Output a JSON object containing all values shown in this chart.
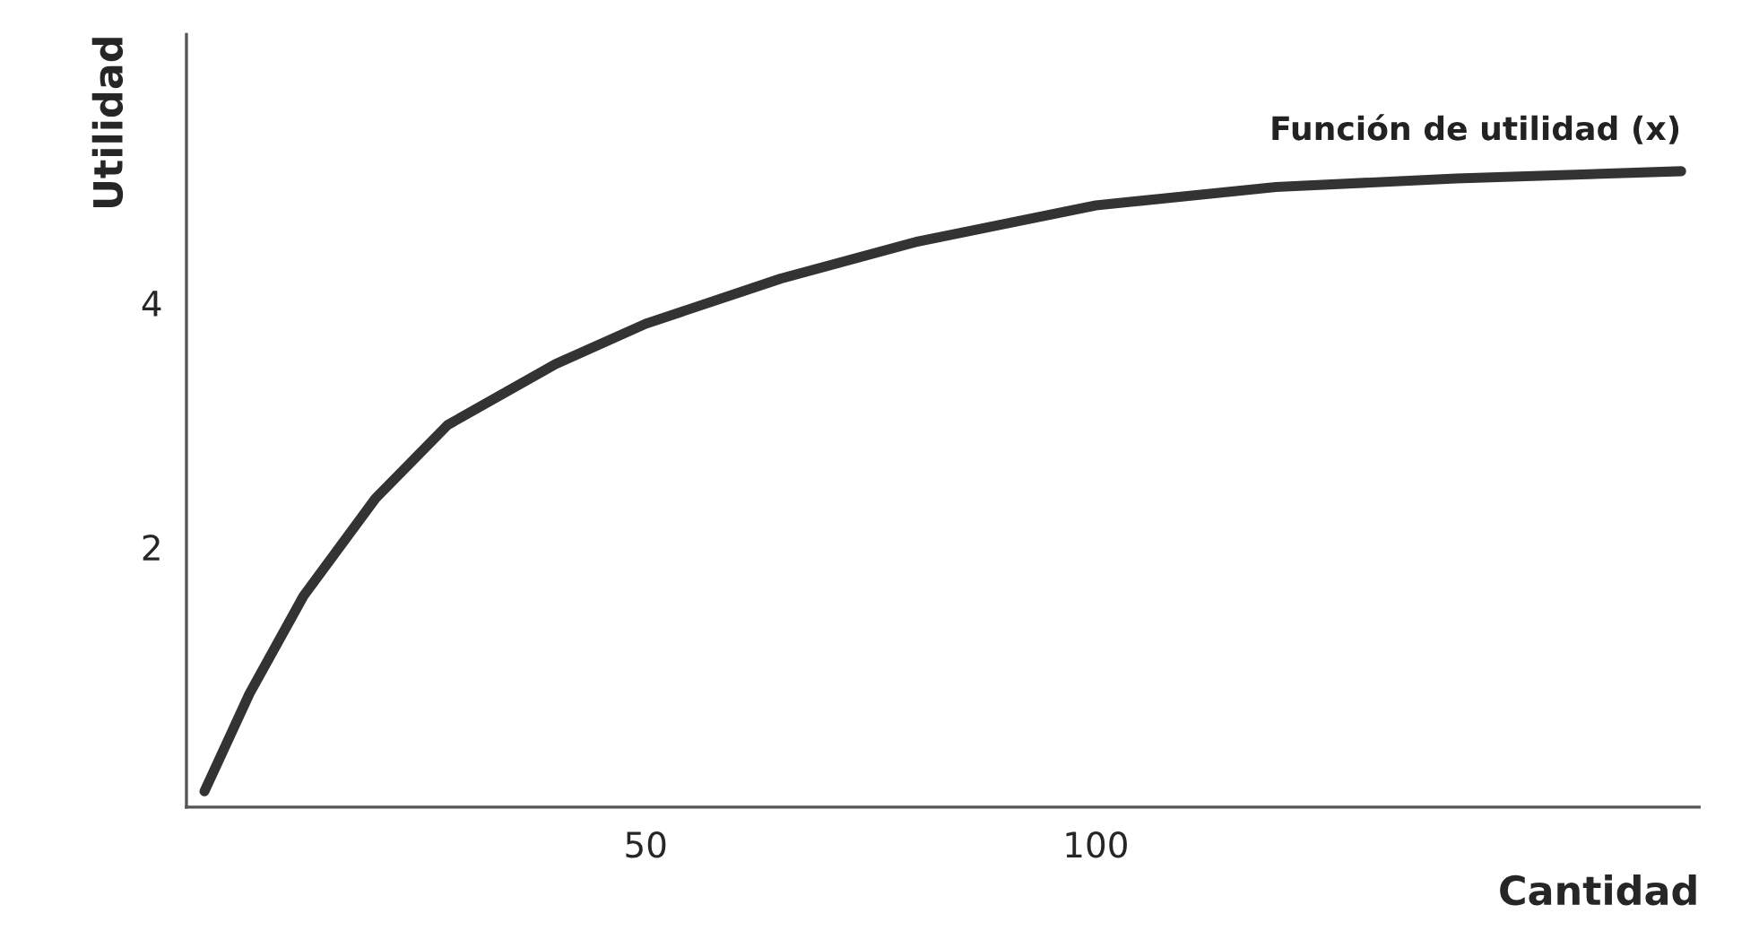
{
  "chart_data": {
    "type": "line",
    "xlabel": "Cantidad",
    "ylabel": "Utilidad",
    "series": [
      {
        "name": "Función de utilidad (x)",
        "color": "#333333",
        "x": [
          1,
          6,
          12,
          20,
          28,
          40,
          50,
          65,
          80,
          100,
          120,
          140,
          165
        ],
        "values": [
          0,
          0.8,
          1.6,
          2.4,
          3.0,
          3.5,
          3.83,
          4.2,
          4.5,
          4.8,
          4.95,
          5.02,
          5.08
        ]
      }
    ],
    "xlim": [
      -1,
      167
    ],
    "ylim": [
      -0.13,
      6.2
    ],
    "xticks": [
      50,
      100
    ],
    "yticks": [
      2,
      4
    ],
    "grid": false,
    "legend": false,
    "marker": "none",
    "line_style": "solid"
  }
}
